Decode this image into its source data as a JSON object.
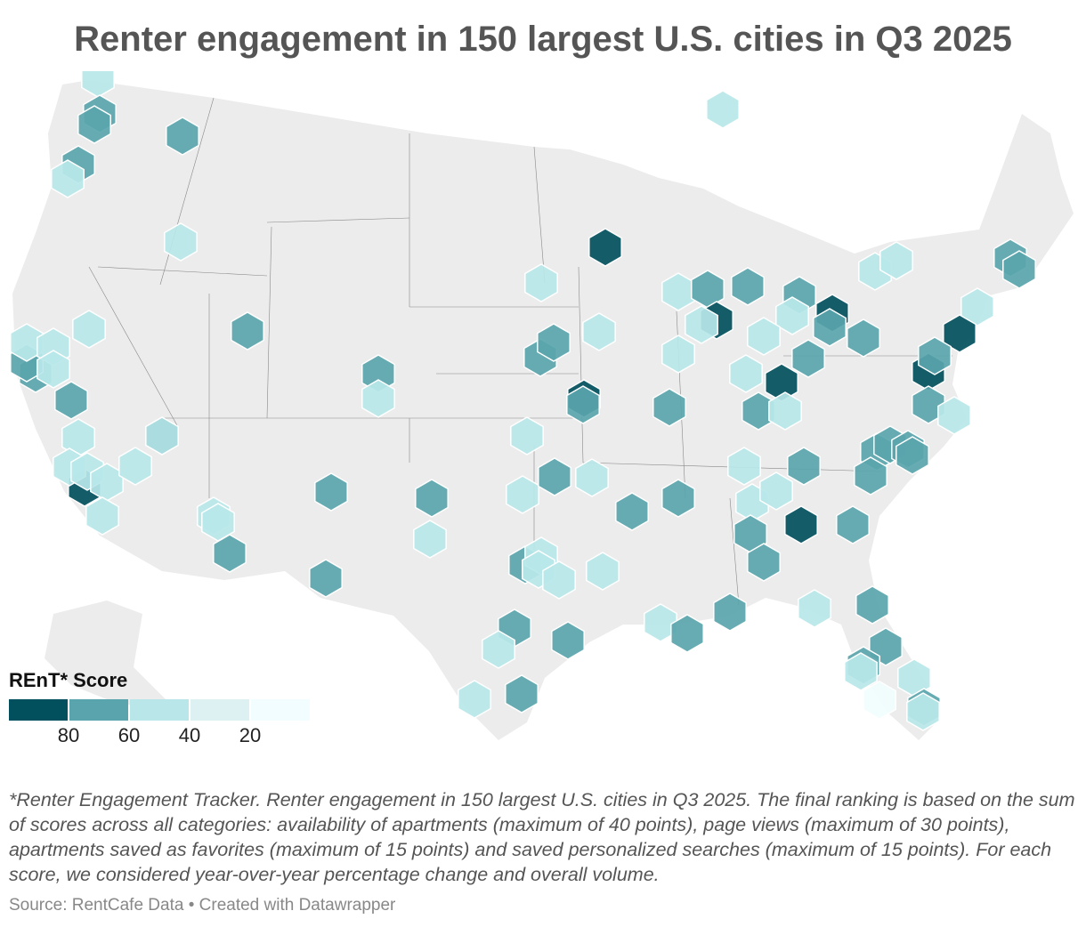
{
  "title": "Renter engagement in 150 largest U.S. cities in Q3 2025",
  "legend": {
    "title": "REnT* Score",
    "colors": [
      "#024f5d",
      "#5aa5ad",
      "#b9e7e9",
      "#ddf1f3",
      "#f1fdfe"
    ],
    "ticks": [
      "80",
      "60",
      "40",
      "20"
    ]
  },
  "marker_levels": [
    "80+",
    "60-80",
    "40-60",
    "20-40"
  ],
  "colors": {
    "land": "#ececec",
    "borders": "#888888"
  },
  "note": "*Renter Engagement Tracker. Renter engagement in 150 largest U.S. cities in Q3 2025. The final ranking is based on the sum of scores across all categories: availability of apartments (maximum of 40 points), page views (maximum of 30 points), apartments saved as favorites (maximum of 15 points) and saved personalized searches (maximum of 15 points). For each score, we considered year-over-year percentage change and overall volume.",
  "source": "Source: RentCafe Data • Created with Datawrapper"
}
